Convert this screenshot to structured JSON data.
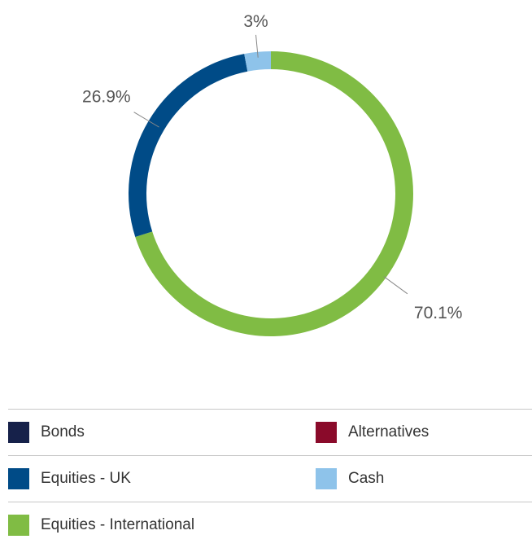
{
  "chart_data": {
    "type": "pie",
    "donut": true,
    "title": "",
    "slices": [
      {
        "name": "Equities - International",
        "value": 70.1,
        "label": "70.1%",
        "color": "#80bc44"
      },
      {
        "name": "Equities - UK",
        "value": 26.9,
        "label": "26.9%",
        "color": "#004b87"
      },
      {
        "name": "Cash",
        "value": 3,
        "label": "3%",
        "color": "#8ec3ea"
      }
    ],
    "legend_placement": "bottom"
  },
  "legend": {
    "items": [
      {
        "label": "Bonds",
        "color": "#16214a"
      },
      {
        "label": "Alternatives",
        "color": "#8a0a2a"
      },
      {
        "label": "Equities - UK",
        "color": "#004b87"
      },
      {
        "label": "Cash",
        "color": "#8ec3ea"
      },
      {
        "label": "Equities - International",
        "color": "#80bc44"
      }
    ]
  }
}
